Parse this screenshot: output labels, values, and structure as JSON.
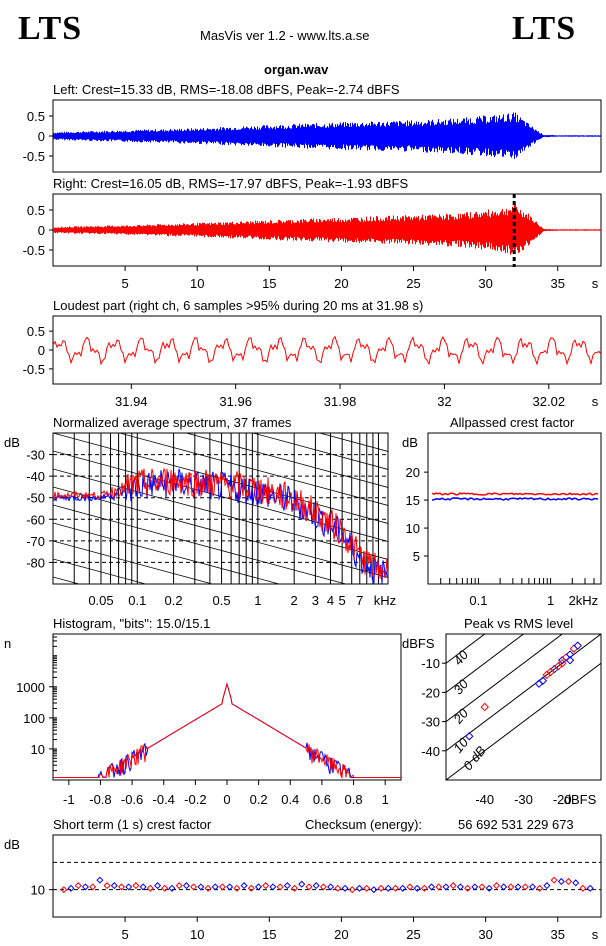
{
  "header": {
    "logo_left": "LTS",
    "logo_right": "LTS",
    "app_title": "MasVis ver 1.2 - www.lts.a.se",
    "file_name": "organ.wav"
  },
  "colors": {
    "left": "#0000ff",
    "right": "#ff0000"
  },
  "chart_data": [
    {
      "id": "left",
      "type": "line",
      "title": "Left: Crest=15.33 dB, RMS=-18.08 dBFS, Peak=-2.74 dBFS",
      "yticks": [
        "0.5",
        "0",
        "-0.5"
      ],
      "ylim": [
        -0.9,
        0.9
      ],
      "xlim": [
        0,
        38
      ],
      "envelope": {
        "x": [
          0,
          2,
          5,
          10,
          15,
          20,
          25,
          28,
          31,
          32,
          33,
          34,
          35,
          38
        ],
        "upper": [
          0.1,
          0.12,
          0.15,
          0.2,
          0.28,
          0.35,
          0.4,
          0.45,
          0.55,
          0.6,
          0.3,
          0.03,
          0.02,
          0.02
        ],
        "lower": [
          -0.1,
          -0.12,
          -0.15,
          -0.2,
          -0.28,
          -0.35,
          -0.4,
          -0.45,
          -0.55,
          -0.6,
          -0.3,
          -0.03,
          -0.02,
          -0.02
        ]
      }
    },
    {
      "id": "right",
      "type": "line",
      "title": "Right: Crest=16.05 dB, RMS=-17.97 dBFS, Peak=-1.93 dBFS",
      "yticks": [
        "0.5",
        "0",
        "-0.5"
      ],
      "ylim": [
        -0.9,
        0.9
      ],
      "xlim": [
        0,
        38
      ],
      "xticks": [
        "5",
        "10",
        "15",
        "20",
        "25",
        "30",
        "35"
      ],
      "xunit": "s",
      "marker_x": 31.98,
      "envelope": {
        "x": [
          0,
          2,
          5,
          10,
          15,
          20,
          25,
          28,
          31,
          32,
          33,
          34,
          35,
          38
        ],
        "upper": [
          0.08,
          0.1,
          0.12,
          0.18,
          0.25,
          0.32,
          0.38,
          0.42,
          0.55,
          0.65,
          0.4,
          0.03,
          0.02,
          0.02
        ],
        "lower": [
          -0.08,
          -0.1,
          -0.12,
          -0.18,
          -0.25,
          -0.32,
          -0.38,
          -0.42,
          -0.55,
          -0.65,
          -0.4,
          -0.03,
          -0.02,
          -0.02
        ]
      }
    },
    {
      "id": "loudest",
      "type": "line",
      "title": "Loudest part (right ch, 6 samples >95% during 20 ms at 31.98 s)",
      "yticks": [
        "0.5",
        "0",
        "-0.5"
      ],
      "ylim": [
        -0.9,
        0.9
      ],
      "xticks": [
        "31.94",
        "31.96",
        "31.98",
        "32",
        "32.02"
      ],
      "xunit": "s",
      "xlim": [
        31.925,
        32.03
      ]
    },
    {
      "id": "spectrum",
      "type": "line",
      "title": "Normalized average spectrum, 37 frames",
      "ylabel": "dB",
      "yticks": [
        "-30",
        "-40",
        "-50",
        "-60",
        "-70",
        "-80"
      ],
      "ylim": [
        -90,
        -20
      ],
      "xticks": [
        "0.05",
        "0.1",
        "0.2",
        "0.5",
        "1",
        "2",
        "3",
        "4",
        "5",
        "7"
      ],
      "xunit": "kHz",
      "xscale": "log",
      "xlim": [
        0.02,
        12
      ],
      "series": [
        {
          "freq": [
            0.02,
            0.05,
            0.1,
            0.2,
            0.5,
            1,
            2,
            3,
            5,
            7,
            10
          ],
          "level": [
            -50,
            -50,
            -45,
            -43,
            -45,
            -47,
            -52,
            -58,
            -67,
            -78,
            -85
          ]
        }
      ]
    },
    {
      "id": "crest",
      "type": "line",
      "title": "Allpassed crest factor",
      "ylabel": "dB",
      "yticks": [
        "20",
        "15",
        "10",
        "5"
      ],
      "ylim": [
        0,
        27
      ],
      "xticks": [
        "0.1",
        "1",
        "2"
      ],
      "xunit": "kHz",
      "xscale": "log",
      "xlim": [
        0.02,
        5
      ],
      "series": [
        {
          "name": "left",
          "value": 15.2
        },
        {
          "name": "right",
          "value": 16.1
        }
      ]
    },
    {
      "id": "histogram",
      "type": "line",
      "title": "Histogram, \"bits\": 15.0/15.1",
      "ylabel": "n",
      "yticks": [
        "1000",
        "100",
        "10"
      ],
      "yscale": "log",
      "xticks": [
        "-1",
        "-0.8",
        "-0.6",
        "-0.4",
        "-0.2",
        "0",
        "0.2",
        "0.4",
        "0.6",
        "0.8",
        "1"
      ],
      "xlim": [
        -1.1,
        1.1
      ]
    },
    {
      "id": "peakrms",
      "type": "scatter",
      "title": "Peak vs RMS level",
      "ylabel": "dBFS",
      "yticks": [
        "-10",
        "-20",
        "-30",
        "-40"
      ],
      "xticks": [
        "-40",
        "-30",
        "-20"
      ],
      "xunit": "dBFS",
      "ylim": [
        -50,
        0
      ],
      "xlim": [
        -50,
        -10
      ],
      "diag_labels": [
        "40",
        "30",
        "20",
        "10",
        "0 dB"
      ],
      "points": [
        [
          -44,
          -35
        ],
        [
          -40,
          -25
        ],
        [
          -26,
          -17
        ],
        [
          -24,
          -14
        ],
        [
          -22,
          -12
        ],
        [
          -21,
          -11
        ],
        [
          -20,
          -9
        ],
        [
          -19,
          -8
        ],
        [
          -18,
          -7
        ],
        [
          -17,
          -5
        ],
        [
          -16,
          -4
        ],
        [
          -23,
          -13
        ],
        [
          -25,
          -16
        ],
        [
          -20,
          -10
        ],
        [
          -18,
          -9
        ]
      ]
    },
    {
      "id": "shortcrest",
      "type": "scatter",
      "title": "Short term (1 s) crest factor",
      "checksum_label": "Checksum (energy):",
      "checksum_value": "56 692 531 229 673",
      "ylabel": "dB",
      "yticks": [
        "10"
      ],
      "ylim": [
        0,
        30
      ],
      "xticks": [
        "5",
        "10",
        "15",
        "20",
        "25",
        "30",
        "35"
      ],
      "xunit": "s",
      "xlim": [
        0,
        38
      ],
      "left": [
        10.5,
        11,
        13.5,
        11.5,
        11,
        11,
        11.5,
        10.5,
        11.5,
        11,
        11,
        11,
        11.5,
        11,
        11,
        11.5,
        12,
        11.5,
        11,
        10.5,
        10.5,
        10,
        10.5,
        10.5,
        10.5,
        11,
        11,
        11,
        11,
        10.5,
        11,
        11,
        11,
        11.5,
        13,
        12.5,
        10.5
      ],
      "right": [
        10,
        11.5,
        11,
        11.5,
        11,
        11.5,
        10.5,
        10.5,
        11.5,
        11,
        10.5,
        11,
        10.5,
        10.5,
        11.5,
        11,
        10.5,
        11,
        11,
        10.5,
        10,
        10.5,
        10.5,
        10.5,
        11,
        10.5,
        11,
        11.5,
        10.5,
        11,
        11.5,
        11,
        11,
        10.5,
        13.5,
        13,
        10.5
      ]
    }
  ]
}
